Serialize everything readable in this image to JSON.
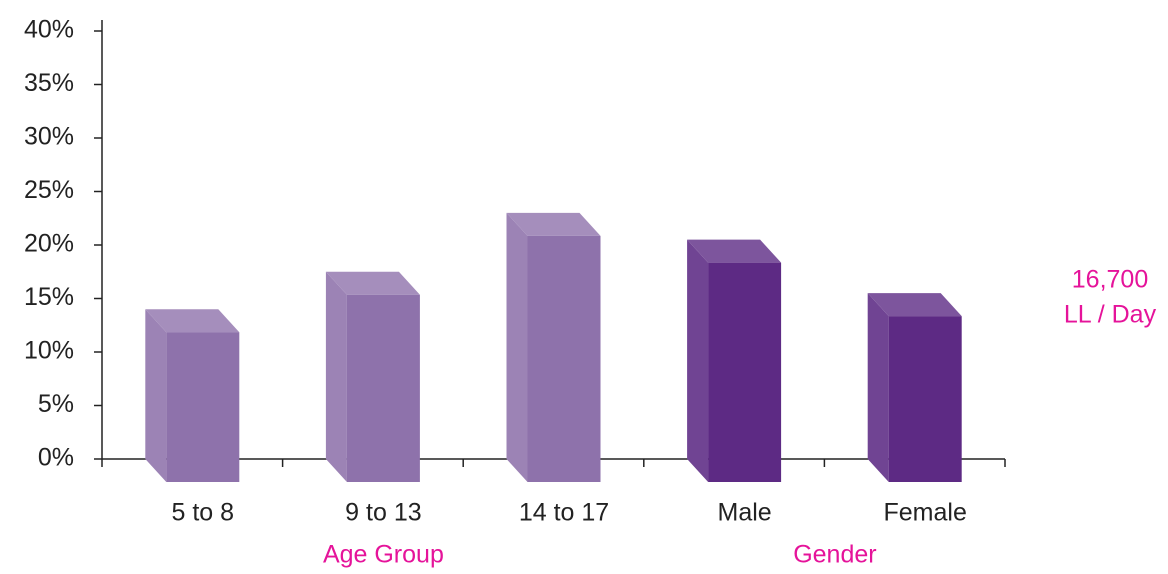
{
  "chart_data": {
    "type": "bar3d",
    "categories": [
      "5 to 8",
      "9 to 13",
      "14 to 17",
      "Male",
      "Female"
    ],
    "values": [
      14,
      17.5,
      23,
      20.5,
      15.5
    ],
    "colors": [
      "#8e72ab",
      "#8e72ab",
      "#8e72ab",
      "#5d2a84",
      "#5d2a84"
    ],
    "ylim": [
      0,
      40
    ],
    "yticks": [
      {
        "value": 0,
        "label": "0%"
      },
      {
        "value": 5,
        "label": "5%"
      },
      {
        "value": 10,
        "label": "10%"
      },
      {
        "value": 15,
        "label": "15%"
      },
      {
        "value": 20,
        "label": "20%"
      },
      {
        "value": 25,
        "label": "25%"
      },
      {
        "value": 30,
        "label": "30%"
      },
      {
        "value": 35,
        "label": "35%"
      },
      {
        "value": 40,
        "label": "40%"
      }
    ],
    "annotations": [
      "Age Group",
      "Gender"
    ],
    "note": [
      "16,700",
      "LL / Day"
    ]
  }
}
